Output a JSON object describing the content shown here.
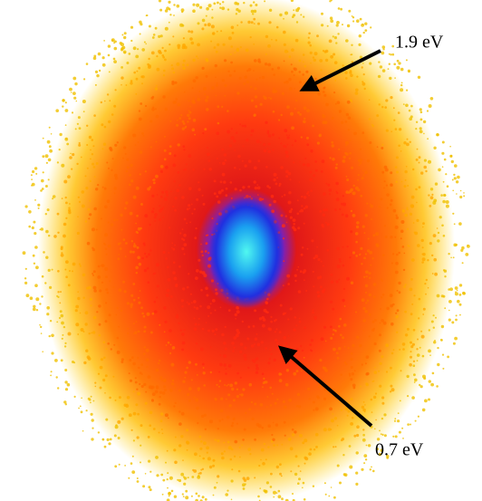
{
  "annotations": [
    {
      "label": "1.9 eV"
    },
    {
      "label": "0.7 eV"
    }
  ]
}
